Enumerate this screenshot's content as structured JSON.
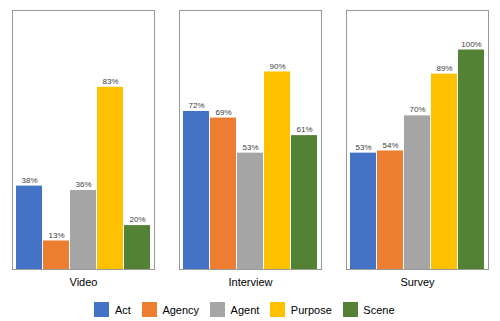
{
  "chart_data": {
    "type": "bar",
    "categories": [
      "Video",
      "Interview",
      "Survey"
    ],
    "series": [
      {
        "name": "Act",
        "color": "#4472c4",
        "values": [
          38,
          72,
          53
        ],
        "value_labels": [
          "38%",
          "72%",
          "53%"
        ]
      },
      {
        "name": "Agency",
        "color": "#ed7d31",
        "values": [
          13,
          69,
          54
        ],
        "value_labels": [
          "13%",
          "69%",
          "54%"
        ]
      },
      {
        "name": "Agent",
        "color": "#a5a5a5",
        "values": [
          36,
          53,
          70
        ],
        "value_labels": [
          "36%",
          "53%",
          "70%"
        ]
      },
      {
        "name": "Purpose",
        "color": "#ffc000",
        "values": [
          83,
          90,
          89
        ],
        "value_labels": [
          "83%",
          "90%",
          "89%"
        ]
      },
      {
        "name": "Scene",
        "color": "#548235",
        "values": [
          20,
          61,
          100
        ],
        "value_labels": [
          "20%",
          "61%",
          "100%"
        ]
      }
    ],
    "ylim": [
      0,
      118
    ],
    "yticks": [],
    "grid": false,
    "legend": "bottom",
    "data_labels": true,
    "tick_labels": "x"
  }
}
